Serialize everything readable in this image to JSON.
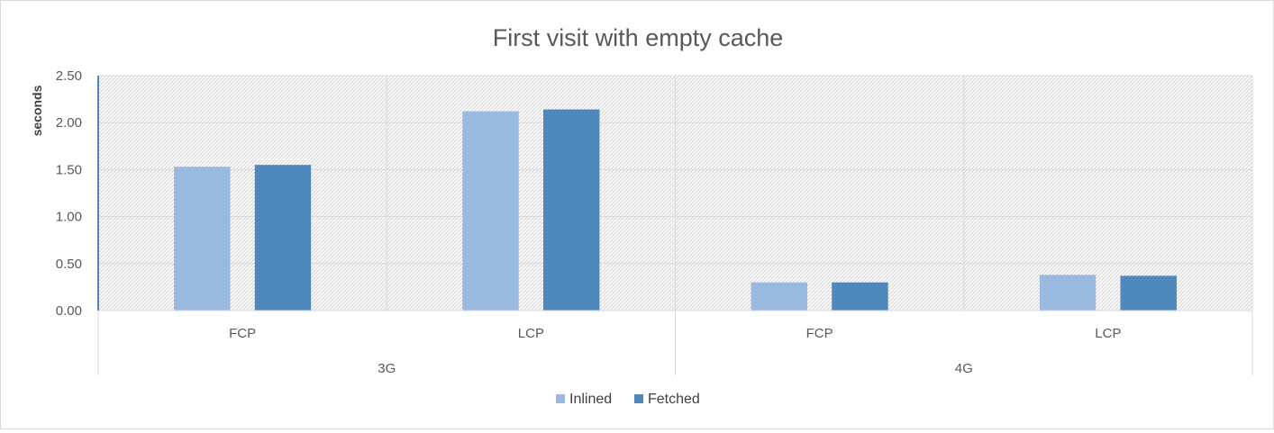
{
  "chart_data": {
    "type": "bar",
    "title": "First visit with empty cache",
    "ylabel": "seconds",
    "xlabel": "",
    "ylim": [
      0,
      2.5
    ],
    "yticks": [
      "0.00",
      "0.50",
      "1.00",
      "1.50",
      "2.00",
      "2.50"
    ],
    "ytick_values": [
      0,
      0.5,
      1.0,
      1.5,
      2.0,
      2.5
    ],
    "groups": [
      {
        "label": "3G",
        "categories": [
          "FCP",
          "LCP"
        ]
      },
      {
        "label": "4G",
        "categories": [
          "FCP",
          "LCP"
        ]
      }
    ],
    "series": [
      {
        "name": "Inlined",
        "color": "#9ab9df",
        "values": [
          1.53,
          2.12,
          0.3,
          0.38
        ]
      },
      {
        "name": "Fetched",
        "color": "#4f88bd",
        "values": [
          1.55,
          2.14,
          0.3,
          0.37
        ]
      }
    ],
    "grid": true,
    "legend_position": "bottom"
  }
}
